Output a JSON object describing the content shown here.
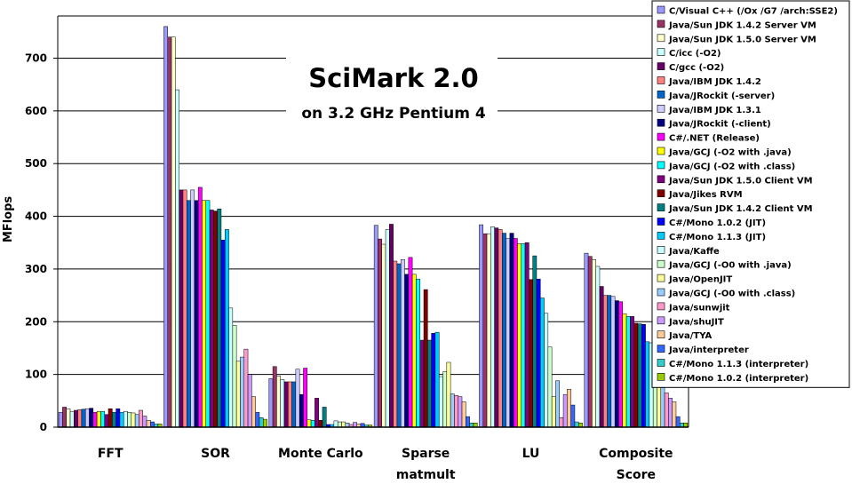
{
  "chart_data": {
    "type": "bar",
    "title": "SciMark 2.0",
    "subtitle": "on 3.2 GHz Pentium 4",
    "ylabel": "MFlops",
    "xlabel": "",
    "ylim": [
      0,
      780
    ],
    "yticks": [
      0,
      100,
      200,
      300,
      400,
      500,
      600,
      700
    ],
    "grid": true,
    "legend_position": "right",
    "categories": [
      {
        "line1": "FFT",
        "line2": ""
      },
      {
        "line1": "SOR",
        "line2": ""
      },
      {
        "line1": "Monte Carlo",
        "line2": ""
      },
      {
        "line1": "Sparse",
        "line2": "matmult"
      },
      {
        "line1": "LU",
        "line2": ""
      },
      {
        "line1": "Composite",
        "line2": "Score"
      }
    ],
    "series": [
      {
        "name": "C/Visual C++ (/Ox /G7 /arch:SSE2)",
        "color": "#9999ff",
        "values": [
          28,
          760,
          92,
          383,
          384,
          330
        ]
      },
      {
        "name": "Java/Sun JDK 1.4.2 Server VM",
        "color": "#993366",
        "values": [
          38,
          740,
          115,
          357,
          367,
          324
        ]
      },
      {
        "name": "Java/Sun JDK 1.5.0 Server VM",
        "color": "#ffffcc",
        "values": [
          35,
          740,
          97,
          347,
          367,
          318
        ]
      },
      {
        "name": "C/icc (-O2)",
        "color": "#ccffff",
        "values": [
          30,
          640,
          90,
          375,
          380,
          305
        ]
      },
      {
        "name": "C/gcc (-O2)",
        "color": "#660066",
        "values": [
          32,
          450,
          86,
          385,
          378,
          267
        ]
      },
      {
        "name": "Java/IBM JDK 1.4.2",
        "color": "#ff8080",
        "values": [
          33,
          450,
          86,
          315,
          375,
          250
        ]
      },
      {
        "name": "Java/JRockit (-server)",
        "color": "#0066cc",
        "values": [
          34,
          430,
          86,
          310,
          368,
          250
        ]
      },
      {
        "name": "Java/IBM JDK 1.3.1",
        "color": "#ccccff",
        "values": [
          35,
          450,
          110,
          318,
          358,
          248
        ]
      },
      {
        "name": "Java/JRockit (-client)",
        "color": "#000080",
        "values": [
          36,
          430,
          62,
          290,
          368,
          240
        ]
      },
      {
        "name": "C#/.NET (Release)",
        "color": "#ff00ff",
        "values": [
          28,
          455,
          112,
          322,
          358,
          238
        ]
      },
      {
        "name": "Java/GCJ (-O2 with .java)",
        "color": "#ffff00",
        "values": [
          30,
          430,
          14,
          290,
          348,
          215
        ]
      },
      {
        "name": "Java/GCJ (-O2 with .class)",
        "color": "#00ffff",
        "values": [
          30,
          430,
          13,
          281,
          348,
          210
        ]
      },
      {
        "name": "Java/Sun JDK 1.5.0 Client VM",
        "color": "#800080",
        "values": [
          24,
          412,
          55,
          165,
          350,
          210
        ]
      },
      {
        "name": "Java/Jikes RVM",
        "color": "#800000",
        "values": [
          35,
          410,
          13,
          261,
          280,
          197
        ]
      },
      {
        "name": "Java/Sun JDK 1.4.2 Client VM",
        "color": "#008080",
        "values": [
          28,
          414,
          38,
          165,
          325,
          196
        ]
      },
      {
        "name": "C#/Mono 1.0.2 (JIT)",
        "color": "#0000ff",
        "values": [
          35,
          355,
          5,
          178,
          281,
          195
        ]
      },
      {
        "name": "C#/Mono 1.1.3 (JIT)",
        "color": "#00ccff",
        "values": [
          28,
          375,
          5,
          180,
          245,
          162
        ]
      },
      {
        "name": "Java/Kaffe",
        "color": "#ccffff",
        "values": [
          30,
          226,
          12,
          96,
          216,
          160
        ]
      },
      {
        "name": "Java/GCJ (-O0 with .java)",
        "color": "#ccffcc",
        "values": [
          28,
          193,
          10,
          105,
          152,
          120
        ]
      },
      {
        "name": "Java/OpenJIT",
        "color": "#ffff99",
        "values": [
          27,
          125,
          10,
          123,
          58,
          100
        ]
      },
      {
        "name": "Java/GCJ (-O0 with .class)",
        "color": "#99ccff",
        "values": [
          24,
          133,
          8,
          63,
          88,
          75
        ]
      },
      {
        "name": "Java/sunwjit",
        "color": "#ff99cc",
        "values": [
          32,
          148,
          5,
          60,
          18,
          65
        ]
      },
      {
        "name": "Java/shuJIT",
        "color": "#cc99ff",
        "values": [
          21,
          100,
          9,
          58,
          62,
          55
        ]
      },
      {
        "name": "Java/TYA",
        "color": "#ffcc99",
        "values": [
          13,
          58,
          6,
          48,
          72,
          48
        ]
      },
      {
        "name": "Java/interpreter",
        "color": "#3366ff",
        "values": [
          10,
          28,
          7,
          20,
          42,
          20
        ]
      },
      {
        "name": "C#/Mono 1.1.3 (interpreter)",
        "color": "#33cccc",
        "values": [
          6,
          18,
          4,
          8,
          10,
          8
        ]
      },
      {
        "name": "C#/Mono 1.0.2 (interpreter)",
        "color": "#99cc00",
        "values": [
          6,
          15,
          4,
          8,
          8,
          8
        ]
      }
    ]
  }
}
